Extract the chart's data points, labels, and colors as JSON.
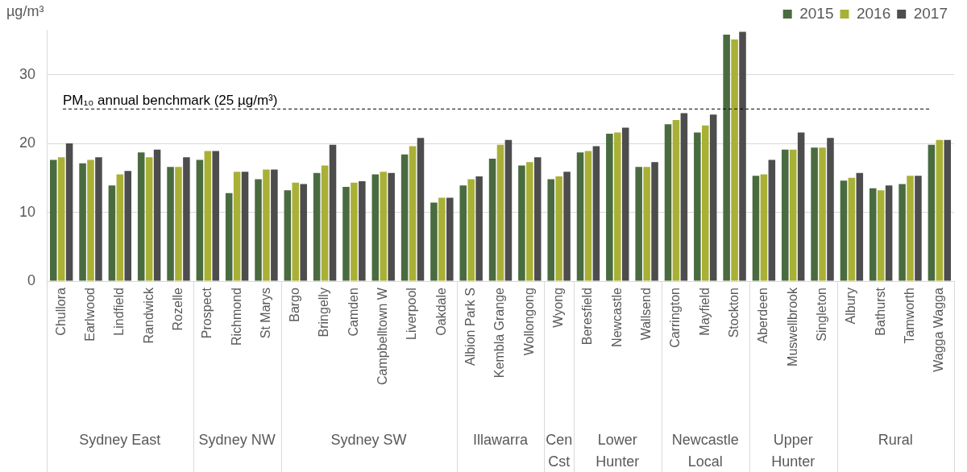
{
  "chart_data": {
    "type": "bar",
    "ylabel": "µg/m³",
    "categories": [
      "Chullora",
      "Earlwood",
      "Lindfield",
      "Randwick",
      "Rozelle",
      "Prospect",
      "Richmond",
      "St Marys",
      "Bargo",
      "Bringelly",
      "Camden",
      "Campbelltown W",
      "Liverpool",
      "Oakdale",
      "Albion Park S",
      "Kembla Grange",
      "Wollongong",
      "Wyong",
      "Beresfield",
      "Newcastle",
      "Wallsend",
      "Carrington",
      "Mayfield",
      "Stockton",
      "Aberdeen",
      "Muswellbrook",
      "Singleton",
      "Albury",
      "Bathurst",
      "Tamworth",
      "Wagga Wagga"
    ],
    "series": [
      {
        "name": "2015",
        "color": "#4a6b3f",
        "values": [
          17.6,
          17.1,
          13.9,
          18.7,
          16.6,
          17.6,
          12.8,
          14.8,
          13.2,
          15.7,
          13.7,
          15.5,
          18.4,
          11.4,
          13.9,
          17.8,
          16.8,
          14.8,
          18.7,
          21.4,
          16.6,
          22.8,
          21.6,
          35.8,
          15.3,
          19.1,
          19.4,
          14.6,
          13.5,
          14.1,
          19.8
        ]
      },
      {
        "name": "2016",
        "color": "#a9b036",
        "values": [
          18.0,
          17.6,
          15.5,
          18.0,
          16.6,
          18.9,
          15.9,
          16.2,
          14.3,
          16.8,
          14.3,
          15.9,
          19.6,
          12.1,
          14.8,
          19.8,
          17.3,
          15.2,
          18.9,
          21.6,
          16.6,
          23.4,
          22.6,
          35.1,
          15.5,
          19.1,
          19.4,
          15.0,
          13.2,
          15.3,
          20.5
        ]
      },
      {
        "name": "2017",
        "color": "#4d4d4d",
        "values": [
          20.0,
          18.0,
          16.0,
          19.1,
          18.0,
          18.9,
          15.9,
          16.2,
          14.1,
          19.8,
          14.5,
          15.7,
          20.8,
          12.1,
          15.2,
          20.5,
          18.0,
          15.9,
          19.6,
          22.3,
          17.3,
          24.4,
          24.2,
          36.2,
          17.6,
          21.6,
          20.8,
          15.7,
          13.9,
          15.3,
          20.5
        ]
      }
    ],
    "ylim": [
      0,
      36.5
    ],
    "yticks": [
      0,
      10,
      20,
      30
    ],
    "grid": "y",
    "legend": "top right",
    "ref_lines": [
      {
        "axis": "y",
        "value": 25,
        "label": "PM₁₀ annual benchmark (25 µg/m³)",
        "color": "#000000",
        "line_style": "dashed"
      }
    ],
    "annotations": [
      "Sydney East",
      "Sydney NW",
      "Sydney SW",
      "Illawarra",
      "Cen Cst",
      "Lower Hunter",
      "Newcastle Local",
      "Upper Hunter",
      "Rural"
    ]
  }
}
